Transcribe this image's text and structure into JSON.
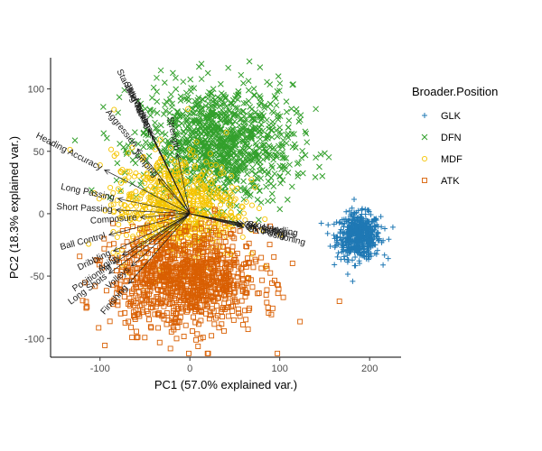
{
  "chart_data": {
    "type": "scatter",
    "subtype": "pca-biplot",
    "xlabel": "PC1 (57.0% explained var.)",
    "ylabel": "PC2 (18.3% explained var.)",
    "xlim": [
      -155,
      235
    ],
    "ylim": [
      -115,
      125
    ],
    "x_ticks": [
      -100,
      0,
      100,
      200
    ],
    "y_ticks": [
      -100,
      -50,
      0,
      50,
      100
    ],
    "x_tick_labels": [
      "-100",
      "0",
      "100",
      "200"
    ],
    "y_tick_labels": [
      "-100",
      "-50",
      "0",
      "50",
      "100"
    ],
    "grid": false,
    "legend": {
      "title": "Broader.Position",
      "position": "right",
      "entries": [
        "GLK",
        "DFN",
        "MDF",
        "ATK"
      ]
    },
    "series": [
      {
        "name": "GLK",
        "marker": "plus",
        "color": "#1f78b4",
        "cluster": {
          "center": [
            188,
            -18
          ],
          "spread": [
            12,
            9
          ],
          "n": 550
        }
      },
      {
        "name": "DFN",
        "marker": "x",
        "color": "#33a02c",
        "cluster": {
          "center": [
            30,
            55
          ],
          "spread": [
            42,
            24
          ],
          "n": 1100
        }
      },
      {
        "name": "MDF",
        "marker": "circle",
        "color": "#f5c400",
        "cluster": {
          "center": [
            -15,
            5
          ],
          "spread": [
            35,
            22
          ],
          "n": 750
        }
      },
      {
        "name": "ATK",
        "marker": "square",
        "color": "#d95f02",
        "cluster": {
          "center": [
            -5,
            -52
          ],
          "spread": [
            40,
            20
          ],
          "n": 1100
        }
      }
    ],
    "loadings": [
      {
        "label": "Slide Tackle",
        "x": -46,
        "y": 68
      },
      {
        "label": "Standing Tackle",
        "x": -46,
        "y": 67
      },
      {
        "label": "Marking",
        "x": -44,
        "y": 66
      },
      {
        "label": "Interceptions",
        "x": -42,
        "y": 63
      },
      {
        "label": "Aggression",
        "x": -58,
        "y": 52
      },
      {
        "label": "Strength",
        "x": -14,
        "y": 48
      },
      {
        "label": "Heading Accuracy",
        "x": -95,
        "y": 35
      },
      {
        "label": "Jumping",
        "x": -35,
        "y": 28
      },
      {
        "label": "Long Passing",
        "x": -80,
        "y": 12
      },
      {
        "label": "Short Passing",
        "x": -82,
        "y": 3
      },
      {
        "label": "Composure",
        "x": -55,
        "y": -3
      },
      {
        "label": "Ball Control",
        "x": -90,
        "y": -17
      },
      {
        "label": "Dribbling",
        "x": -85,
        "y": -30
      },
      {
        "label": "Agility",
        "x": -75,
        "y": -33
      },
      {
        "label": "Long Shots",
        "x": -90,
        "y": -48
      },
      {
        "label": "Positioning",
        "x": -85,
        "y": -40
      },
      {
        "label": "Volleys",
        "x": -65,
        "y": -42
      },
      {
        "label": "Finishing",
        "x": -68,
        "y": -56
      },
      {
        "label": "GK Diving",
        "x": 58,
        "y": -10
      },
      {
        "label": "GK Handling",
        "x": 60,
        "y": -8
      },
      {
        "label": "GK Kicking",
        "x": 56,
        "y": -8
      },
      {
        "label": "GK Positioning",
        "x": 60,
        "y": -11
      },
      {
        "label": "GK Reflexes",
        "x": 58,
        "y": -9
      }
    ]
  }
}
